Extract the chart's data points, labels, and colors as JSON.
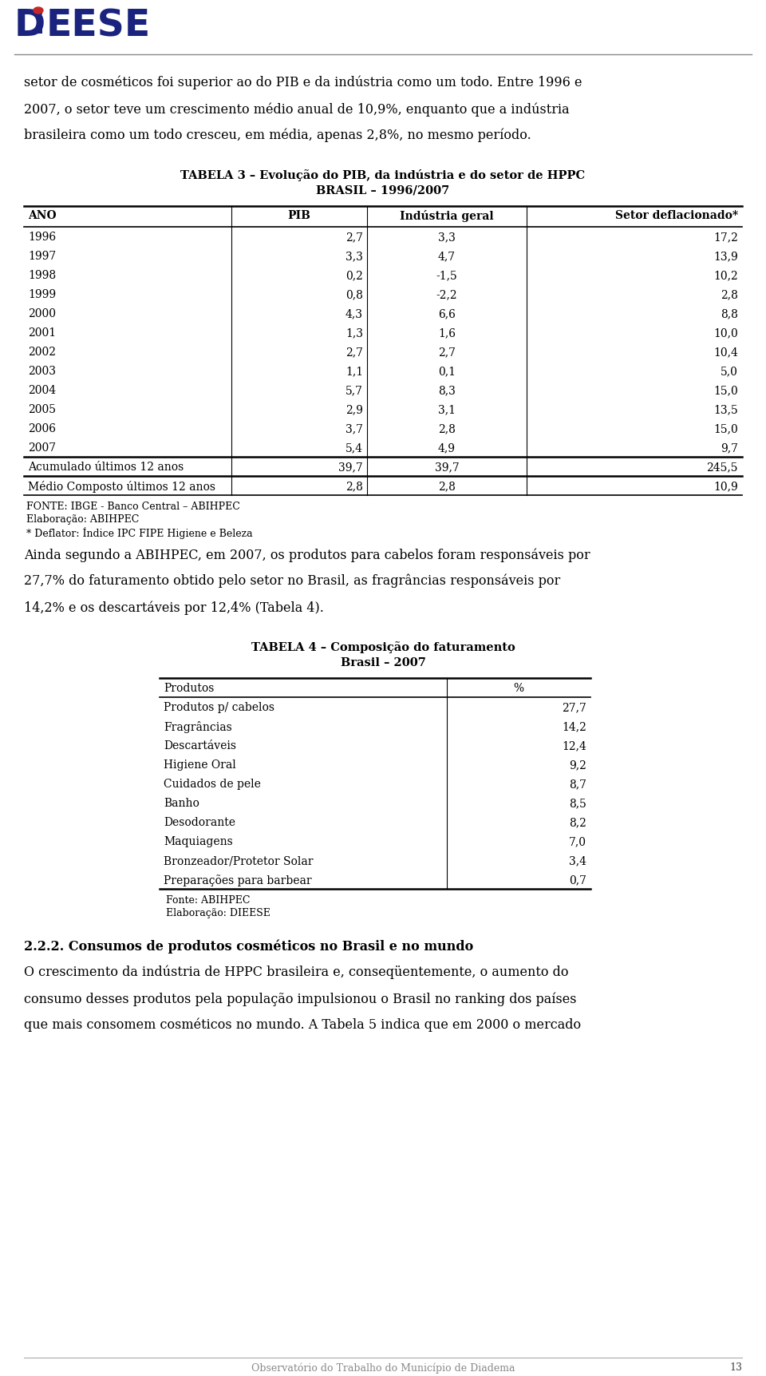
{
  "page_bg": "#ffffff",
  "para1": "setor de cosméticos foi superior ao do PIB e da indústria como um todo. Entre 1996 e",
  "para2": "2007, o setor teve um crescimento médio anual de 10,9%, enquanto que a indústria",
  "para3": "brasileira como um todo cresceu, em média, apenas 2,8%, no mesmo período.",
  "table1_title1": "TABELA 3 – Evolução do PIB, da indústria e do setor de HPPC",
  "table1_title2": "BRASIL – 1996/2007",
  "table1_headers": [
    "ANO",
    "PIB",
    "Indústria geral",
    "Setor deflacionado*"
  ],
  "table1_rows": [
    [
      "1996",
      "2,7",
      "3,3",
      "17,2"
    ],
    [
      "1997",
      "3,3",
      "4,7",
      "13,9"
    ],
    [
      "1998",
      "0,2",
      "-1,5",
      "10,2"
    ],
    [
      "1999",
      "0,8",
      "-2,2",
      "2,8"
    ],
    [
      "2000",
      "4,3",
      "6,6",
      "8,8"
    ],
    [
      "2001",
      "1,3",
      "1,6",
      "10,0"
    ],
    [
      "2002",
      "2,7",
      "2,7",
      "10,4"
    ],
    [
      "2003",
      "1,1",
      "0,1",
      "5,0"
    ],
    [
      "2004",
      "5,7",
      "8,3",
      "15,0"
    ],
    [
      "2005",
      "2,9",
      "3,1",
      "13,5"
    ],
    [
      "2006",
      "3,7",
      "2,8",
      "15,0"
    ],
    [
      "2007",
      "5,4",
      "4,9",
      "9,7"
    ]
  ],
  "table1_acumulado": [
    "Acumulado últimos 12 anos",
    "39,7",
    "39,7",
    "245,5"
  ],
  "table1_medio": [
    "Médio Composto últimos 12 anos",
    "2,8",
    "2,8",
    "10,9"
  ],
  "table1_fonte": "FONTE: IBGE - Banco Central – ABIHPEC",
  "table1_elab": "Elaboração: ABIHPEC",
  "table1_deflator": "* Deflator: Índice IPC FIPE Higiene e Beleza",
  "para4": "Ainda segundo a ABIHPEC, em 2007, os produtos para cabelos foram responsáveis por",
  "para5": "27,7% do faturamento obtido pelo setor no Brasil, as fragrâncias responsáveis por",
  "para6": "14,2% e os descartáveis por 12,4% (Tabela 4).",
  "table2_title1": "TABELA 4 – Composição do faturamento",
  "table2_title2": "Brasil – 2007",
  "table2_headers": [
    "Produtos",
    "%"
  ],
  "table2_rows": [
    [
      "Produtos p/ cabelos",
      "27,7"
    ],
    [
      "Fragrâncias",
      "14,2"
    ],
    [
      "Descartáveis",
      "12,4"
    ],
    [
      "Higiene Oral",
      "9,2"
    ],
    [
      "Cuidados de pele",
      "8,7"
    ],
    [
      "Banho",
      "8,5"
    ],
    [
      "Desodorante",
      "8,2"
    ],
    [
      "Maquiagens",
      "7,0"
    ],
    [
      "Bronzeador/Protetor Solar",
      "3,4"
    ],
    [
      "Preparações para barbear",
      "0,7"
    ]
  ],
  "table2_fonte": "Fonte: ABIHPEC",
  "table2_elab": "Elaboração: DIEESE",
  "section_title": "2.2.2. Consumos de produtos cosméticos no Brasil e no mundo",
  "para7": "O crescimento da indústria de HPPC brasileira e, conseqüentemente, o aumento do",
  "para8": "consumo desses produtos pela população impulsionou o Brasil no ranking dos países",
  "para9": "que mais consomem cosméticos no mundo. A Tabela 5 indica que em 2000 o mercado",
  "footer_text": "Observatório do Trabalho do Município de Diadema",
  "page_num": "13",
  "logo_blue": "#1a237e",
  "logo_red": "#c62828"
}
